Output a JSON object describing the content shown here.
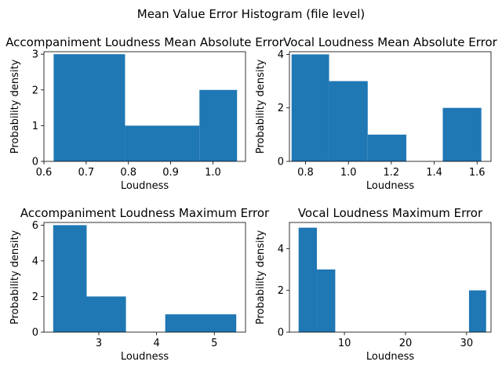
{
  "suptitle": "Mean Value Error Histogram (file level)",
  "chart_data": [
    {
      "type": "bar",
      "title": "Accompaniment Loudness Mean Absolute Error",
      "xlabel": "Loudness",
      "ylabel": "Probability density",
      "xlim": [
        0.6,
        1.077
      ],
      "ylim": [
        0,
        3.07
      ],
      "xticks": [
        0.6,
        0.7,
        0.8,
        0.9,
        1.0
      ],
      "xtick_labels": [
        "0.6",
        "0.7",
        "0.8",
        "0.9",
        "1.0"
      ],
      "yticks": [
        0,
        1,
        2,
        3
      ],
      "ytick_labels": [
        "0",
        "1",
        "2",
        "3"
      ],
      "bins": [
        {
          "x0": 0.623,
          "x1": 0.792,
          "density": 3
        },
        {
          "x0": 0.792,
          "x1": 0.968,
          "density": 1
        },
        {
          "x0": 0.968,
          "x1": 1.057,
          "density": 2
        }
      ],
      "color": "#1f77b4"
    },
    {
      "type": "bar",
      "title": "Vocal Loudness Mean Absolute Error",
      "xlabel": "Loudness",
      "ylabel": "Probability density",
      "xlim": [
        0.725,
        1.665
      ],
      "ylim": [
        0,
        4.1
      ],
      "xticks": [
        0.8,
        1.0,
        1.2,
        1.4,
        1.6
      ],
      "xtick_labels": [
        "0.8",
        "1.0",
        "1.2",
        "1.4",
        "1.6"
      ],
      "yticks": [
        0,
        2,
        4
      ],
      "ytick_labels": [
        "0",
        "2",
        "4"
      ],
      "bins": [
        {
          "x0": 0.735,
          "x1": 0.91,
          "density": 4
        },
        {
          "x0": 0.91,
          "x1": 1.09,
          "density": 3
        },
        {
          "x0": 1.09,
          "x1": 1.27,
          "density": 1
        },
        {
          "x0": 1.27,
          "x1": 1.44,
          "density": 0
        },
        {
          "x0": 1.44,
          "x1": 1.62,
          "density": 2
        }
      ],
      "color": "#1f77b4"
    },
    {
      "type": "bar",
      "title": "Accompaniment Loudness Maximum Error",
      "xlabel": "Loudness",
      "ylabel": "Probability density",
      "xlim": [
        2.05,
        5.54
      ],
      "ylim": [
        0,
        6.15
      ],
      "xticks": [
        3,
        4,
        5
      ],
      "xtick_labels": [
        "3",
        "4",
        "5"
      ],
      "yticks": [
        0,
        2,
        4,
        6
      ],
      "ytick_labels": [
        "0",
        "2",
        "4",
        "6"
      ],
      "bins": [
        {
          "x0": 2.21,
          "x1": 2.79,
          "density": 6
        },
        {
          "x0": 2.79,
          "x1": 3.47,
          "density": 2
        },
        {
          "x0": 3.47,
          "x1": 4.15,
          "density": 0
        },
        {
          "x0": 4.15,
          "x1": 5.38,
          "density": 1
        }
      ],
      "color": "#1f77b4"
    },
    {
      "type": "bar",
      "title": "Vocal Loudness Maximum Error",
      "xlabel": "Loudness",
      "ylabel": "Probability density",
      "xlim": [
        1.0,
        34.0
      ],
      "ylim": [
        0,
        5.25
      ],
      "xticks": [
        10,
        20,
        30
      ],
      "xtick_labels": [
        "10",
        "20",
        "30"
      ],
      "yticks": [
        0,
        2,
        4
      ],
      "ytick_labels": [
        "0",
        "2",
        "4"
      ],
      "bins": [
        {
          "x0": 2.5,
          "x1": 5.5,
          "density": 5
        },
        {
          "x0": 5.5,
          "x1": 8.5,
          "density": 3
        },
        {
          "x0": 8.5,
          "x1": 30.4,
          "density": 0
        },
        {
          "x0": 30.4,
          "x1": 33.2,
          "density": 2
        }
      ],
      "color": "#1f77b4"
    }
  ]
}
